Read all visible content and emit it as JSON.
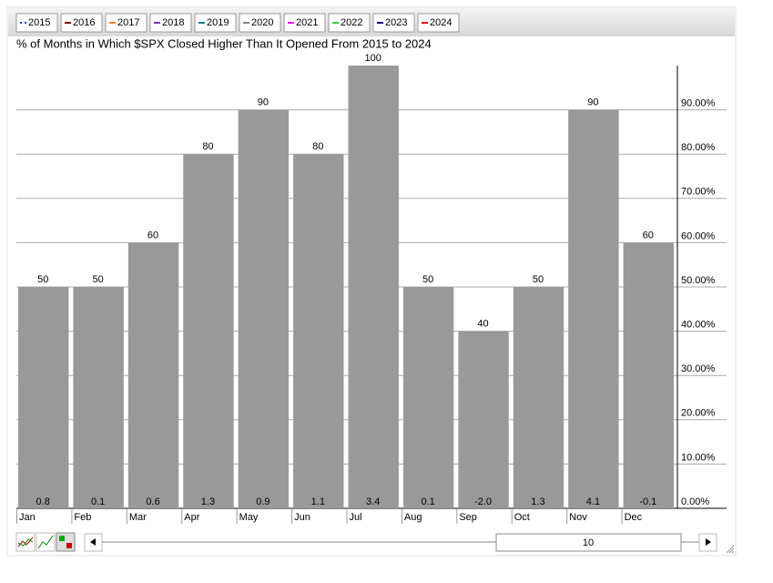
{
  "chart_data": {
    "type": "bar",
    "title": "% of Months in Which $SPX Closed Higher Than It Opened From 2015 to 2024",
    "legend": [
      {
        "name": "2015",
        "color": "#1f3f9f"
      },
      {
        "name": "2016",
        "color": "#8b0000"
      },
      {
        "name": "2017",
        "color": "#ff7f27"
      },
      {
        "name": "2018",
        "color": "#7b2fbe"
      },
      {
        "name": "2019",
        "color": "#008080"
      },
      {
        "name": "2020",
        "color": "#808080"
      },
      {
        "name": "2021",
        "color": "#ff00ff"
      },
      {
        "name": "2022",
        "color": "#33cc33"
      },
      {
        "name": "2023",
        "color": "#000080"
      },
      {
        "name": "2024",
        "color": "#ff0000"
      }
    ],
    "categories": [
      "Jan",
      "Feb",
      "Mar",
      "Apr",
      "May",
      "Jun",
      "Jul",
      "Aug",
      "Sep",
      "Oct",
      "Nov",
      "Dec"
    ],
    "values": [
      50,
      50,
      60,
      80,
      90,
      80,
      100,
      50,
      40,
      50,
      90,
      60
    ],
    "color": "#999999",
    "average_change": {
      "values": [
        0.8,
        0.1,
        0.6,
        1.3,
        0.9,
        1.1,
        3.4,
        0.1,
        -2.0,
        1.3,
        4.1,
        -0.1
      ],
      "value_labels": [
        "0.8",
        "0.1",
        "0.6",
        "1.3",
        "0.9",
        "1.1",
        "3.4",
        "0.1",
        "-2.0",
        "1.3",
        "4.1",
        "-0.1"
      ]
    },
    "ylim": [
      0,
      100
    ],
    "yticks": [
      {
        "value": 0,
        "label": "0.00%"
      },
      {
        "value": 10,
        "label": "10.00%"
      },
      {
        "value": 20,
        "label": "20.00%"
      },
      {
        "value": 30,
        "label": "30.00%"
      },
      {
        "value": 40,
        "label": "40.00%"
      },
      {
        "value": 50,
        "label": "50.00%"
      },
      {
        "value": 60,
        "label": "60.00%"
      },
      {
        "value": 70,
        "label": "70.00%"
      },
      {
        "value": 80,
        "label": "80.00%"
      },
      {
        "value": 90,
        "label": "90.00%"
      }
    ],
    "grid": true,
    "slider_value": 10
  }
}
